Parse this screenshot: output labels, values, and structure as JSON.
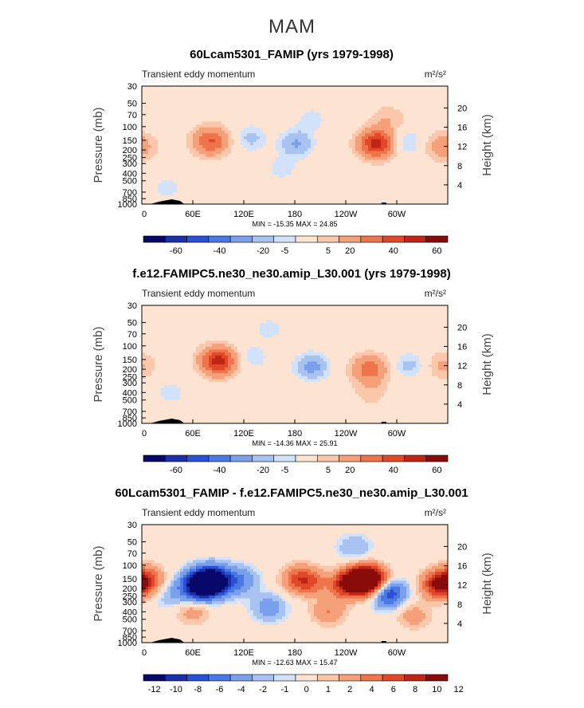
{
  "page": {
    "title": "MAM"
  },
  "palette": {
    "main": [
      "#08086b",
      "#1a2fa8",
      "#2a50d4",
      "#4a78e4",
      "#7aa0ec",
      "#a8c2f2",
      "#d2e2fa",
      "#fde4d2",
      "#fbc7aa",
      "#f6a07a",
      "#ee744c",
      "#e0482a",
      "#c02618",
      "#8a0c0a"
    ],
    "diff": [
      "#08086b",
      "#1a2fa8",
      "#2a50d4",
      "#4a78e4",
      "#7aa0ec",
      "#a8c2f2",
      "#d2e2fa",
      "#fde4d2",
      "#fbc7aa",
      "#f6a07a",
      "#ee744c",
      "#e0482a",
      "#c02618",
      "#8a0c0a"
    ]
  },
  "chart_data": [
    {
      "type": "heatmap",
      "title": "60Lcam5301_FAMIP (yrs 1979-1998)",
      "left_label": "Transient eddy momentum",
      "units": "m²/s²",
      "ylabel": "Pressure (mb)",
      "y2label": "Height (km)",
      "x_ticks": [
        "0",
        "60E",
        "120E",
        "180",
        "120W",
        "60W"
      ],
      "y_ticks": [
        "30",
        "50",
        "70",
        "100",
        "150",
        "200",
        "250",
        "300",
        "400",
        "500",
        "700",
        "850",
        "1000"
      ],
      "y2_ticks": [
        "20",
        "16",
        "12",
        "8",
        "4"
      ],
      "stats": "MIN = -15.35   MAX =  24.85",
      "colorbar_labels": [
        "-60",
        "-40",
        "-20",
        "-5",
        "5",
        "20",
        "40",
        "60"
      ],
      "colorbar_type": "main",
      "background_level": 7,
      "features": [
        {
          "lon": 85,
          "p": 150,
          "value": 10
        },
        {
          "lon": 80,
          "p": 155,
          "value": 20
        },
        {
          "lon": 128,
          "p": 140,
          "value": -8
        },
        {
          "lon": 182,
          "p": 165,
          "value": -12
        },
        {
          "lon": 275,
          "p": 160,
          "value": 20
        },
        {
          "lon": 278,
          "p": 170,
          "value": 24
        },
        {
          "lon": 310,
          "p": 160,
          "value": -8
        },
        {
          "lon": 355,
          "p": 180,
          "value": 15
        },
        {
          "lon": 30,
          "p": 600,
          "value": -5
        },
        {
          "lon": 165,
          "p": 350,
          "value": -5
        },
        {
          "lon": 200,
          "p": 80,
          "value": -5
        },
        {
          "lon": 290,
          "p": 80,
          "value": 8
        }
      ]
    },
    {
      "type": "heatmap",
      "title": "f.e12.FAMIPC5.ne30_ne30.amip_L30.001 (yrs 1979-1998)",
      "left_label": "Transient eddy momentum",
      "units": "m²/s²",
      "ylabel": "Pressure (mb)",
      "y2label": "Height (km)",
      "x_ticks": [
        "0",
        "60E",
        "120E",
        "180",
        "120W",
        "60W"
      ],
      "y_ticks": [
        "30",
        "50",
        "70",
        "100",
        "150",
        "200",
        "250",
        "300",
        "400",
        "500",
        "700",
        "850",
        "1000"
      ],
      "y2_ticks": [
        "20",
        "16",
        "12",
        "8",
        "4"
      ],
      "stats": "MIN = -14.36   MAX =  25.91",
      "colorbar_labels": [
        "-60",
        "-40",
        "-20",
        "-5",
        "5",
        "20",
        "40",
        "60"
      ],
      "colorbar_type": "main",
      "background_level": 7,
      "features": [
        {
          "lon": 88,
          "p": 155,
          "value": 20
        },
        {
          "lon": 92,
          "p": 160,
          "value": 24
        },
        {
          "lon": 130,
          "p": 140,
          "value": -6
        },
        {
          "lon": 200,
          "p": 185,
          "value": -14
        },
        {
          "lon": 268,
          "p": 200,
          "value": 25
        },
        {
          "lon": 315,
          "p": 180,
          "value": -8
        },
        {
          "lon": 355,
          "p": 180,
          "value": 10
        },
        {
          "lon": 35,
          "p": 400,
          "value": -5
        },
        {
          "lon": 150,
          "p": 60,
          "value": -5
        },
        {
          "lon": 270,
          "p": 400,
          "value": 6
        }
      ]
    },
    {
      "type": "heatmap",
      "title": "60Lcam5301_FAMIP - f.e12.FAMIPC5.ne30_ne30.amip_L30.001",
      "left_label": "Transient eddy momentum",
      "units": "m²/s²",
      "ylabel": "Pressure (mb)",
      "y2label": "Height (km)",
      "x_ticks": [
        "0",
        "60E",
        "120E",
        "180",
        "120W",
        "60W"
      ],
      "y_ticks": [
        "30",
        "50",
        "70",
        "100",
        "150",
        "200",
        "250",
        "300",
        "400",
        "500",
        "700",
        "850",
        "1000"
      ],
      "y2_ticks": [
        "20",
        "16",
        "12",
        "8",
        "4"
      ],
      "stats": "MIN = -12.63   MAX =  15.47",
      "colorbar_labels": [
        "-12",
        "-10",
        "-8",
        "-6",
        "-4",
        "-2",
        "-1",
        "0",
        "1",
        "2",
        "4",
        "6",
        "8",
        "10",
        "12"
      ],
      "colorbar_type": "diff",
      "background_level": 7,
      "features": [
        {
          "lon": 5,
          "p": 150,
          "value": 6
        },
        {
          "lon": 75,
          "p": 170,
          "value": -9
        },
        {
          "lon": 85,
          "p": 160,
          "value": -12
        },
        {
          "lon": 65,
          "p": 190,
          "value": -8
        },
        {
          "lon": 115,
          "p": 160,
          "value": -4
        },
        {
          "lon": 185,
          "p": 150,
          "value": 6
        },
        {
          "lon": 200,
          "p": 170,
          "value": 4
        },
        {
          "lon": 255,
          "p": 160,
          "value": 10
        },
        {
          "lon": 268,
          "p": 155,
          "value": 15
        },
        {
          "lon": 240,
          "p": 180,
          "value": 7
        },
        {
          "lon": 290,
          "p": 230,
          "value": -8
        },
        {
          "lon": 350,
          "p": 180,
          "value": 10
        },
        {
          "lon": 60,
          "p": 400,
          "value": 3
        },
        {
          "lon": 150,
          "p": 350,
          "value": -3
        },
        {
          "lon": 220,
          "p": 400,
          "value": 4
        },
        {
          "lon": 320,
          "p": 450,
          "value": 3
        },
        {
          "lon": 35,
          "p": 250,
          "value": -2
        },
        {
          "lon": 250,
          "p": 60,
          "value": -2
        }
      ]
    }
  ]
}
